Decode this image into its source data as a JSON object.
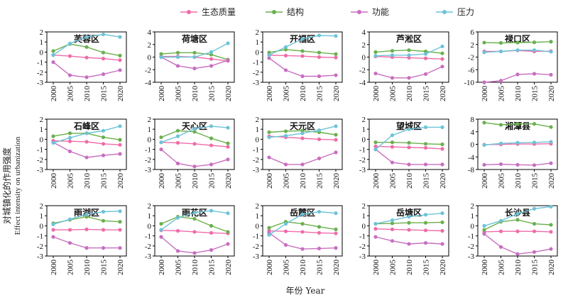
{
  "figure": {
    "xlabel": "年份 Year",
    "ylabel_cn": "对城镇化的作用强度",
    "ylabel_en": "Effect intensity on urbanization"
  },
  "legend": [
    {
      "name": "生态质量",
      "color": "#f06ba8"
    },
    {
      "name": "结构",
      "color": "#6ab04c"
    },
    {
      "name": "功能",
      "color": "#c86ec0"
    },
    {
      "name": "压力",
      "color": "#6cc3d8"
    }
  ],
  "chart_data": [
    {
      "type": "line",
      "title": "芙蓉区",
      "x": [
        "2000",
        "2005",
        "2010",
        "2015",
        "2020"
      ],
      "ylim": [
        -3,
        2
      ],
      "yticks": [
        2,
        1,
        0,
        -1,
        -2,
        -3
      ],
      "series": [
        {
          "name": "生态质量",
          "values": [
            -0.3,
            -0.4,
            -0.55,
            -0.65,
            -0.8
          ]
        },
        {
          "name": "结构",
          "values": [
            0.1,
            0.8,
            0.5,
            -0.05,
            -0.35
          ]
        },
        {
          "name": "功能",
          "values": [
            -1.0,
            -2.3,
            -2.5,
            -2.2,
            -1.8
          ]
        },
        {
          "name": "压力",
          "values": [
            -0.3,
            0.85,
            1.5,
            1.75,
            1.5
          ]
        }
      ]
    },
    {
      "type": "line",
      "title": "荷塘区",
      "x": [
        "2000",
        "2005",
        "2010",
        "2015",
        "2020"
      ],
      "ylim": [
        -4,
        4
      ],
      "yticks": [
        4,
        2,
        0,
        -2,
        -4
      ],
      "series": [
        {
          "name": "生态质量",
          "values": [
            0.1,
            0.1,
            0.0,
            -0.3,
            -0.6
          ]
        },
        {
          "name": "结构",
          "values": [
            0.5,
            0.7,
            0.7,
            0.4,
            -0.4
          ]
        },
        {
          "name": "功能",
          "values": [
            0.0,
            -1.4,
            -1.8,
            -1.4,
            -0.5
          ]
        },
        {
          "name": "压力",
          "values": [
            0.0,
            0.0,
            0.0,
            0.8,
            2.2
          ]
        }
      ]
    },
    {
      "type": "line",
      "title": "开福区",
      "x": [
        "2000",
        "2005",
        "2010",
        "2015",
        "2020"
      ],
      "ylim": [
        -3,
        2
      ],
      "yticks": [
        2,
        1,
        0,
        -1,
        -2,
        -3
      ],
      "series": [
        {
          "name": "生态质量",
          "values": [
            -0.3,
            -0.35,
            -0.4,
            -0.5,
            -0.55
          ]
        },
        {
          "name": "结构",
          "values": [
            -0.05,
            0.25,
            0.1,
            -0.05,
            -0.2
          ]
        },
        {
          "name": "功能",
          "values": [
            -0.6,
            -1.8,
            -2.4,
            -2.4,
            -2.3
          ]
        },
        {
          "name": "压力",
          "values": [
            -0.3,
            0.5,
            1.3,
            1.65,
            1.6
          ]
        }
      ]
    },
    {
      "type": "line",
      "title": "芦淞区",
      "x": [
        "2000",
        "2005",
        "2010",
        "2015",
        "2020"
      ],
      "ylim": [
        -4,
        4
      ],
      "yticks": [
        4,
        2,
        0,
        -2,
        -4
      ],
      "series": [
        {
          "name": "生态质量",
          "values": [
            0.1,
            0.0,
            -0.1,
            -0.2,
            -0.3
          ]
        },
        {
          "name": "结构",
          "values": [
            0.8,
            1.0,
            1.1,
            0.9,
            0.6
          ]
        },
        {
          "name": "功能",
          "values": [
            -2.6,
            -3.3,
            -3.3,
            -2.7,
            -1.5
          ]
        },
        {
          "name": "压力",
          "values": [
            0.2,
            0.3,
            0.3,
            0.5,
            1.7
          ]
        }
      ]
    },
    {
      "type": "line",
      "title": "禄口区",
      "x": [
        "2000",
        "2005",
        "2010",
        "2015",
        "2020"
      ],
      "ylim": [
        -10,
        6
      ],
      "yticks": [
        6,
        2,
        -2,
        -6,
        -10
      ],
      "series": [
        {
          "name": "生态质量",
          "values": [
            -0.2,
            -0.2,
            0.1,
            -0.2,
            -0.1
          ]
        },
        {
          "name": "结构",
          "values": [
            2.6,
            2.5,
            2.6,
            2.7,
            2.9
          ]
        },
        {
          "name": "功能",
          "values": [
            -10.0,
            -9.5,
            -7.5,
            -7.3,
            -7.6
          ]
        },
        {
          "name": "压力",
          "values": [
            -0.5,
            -0.2,
            0.2,
            0.2,
            -0.3
          ]
        }
      ]
    },
    {
      "type": "line",
      "title": "石峰区",
      "x": [
        "2000",
        "2005",
        "2010",
        "2015",
        "2020"
      ],
      "ylim": [
        -3,
        2
      ],
      "yticks": [
        2,
        1,
        0,
        -1,
        -2,
        -3
      ],
      "series": [
        {
          "name": "生态质量",
          "values": [
            -0.15,
            -0.2,
            -0.25,
            -0.45,
            -0.55
          ]
        },
        {
          "name": "结构",
          "values": [
            0.3,
            0.6,
            0.6,
            0.2,
            -0.05
          ]
        },
        {
          "name": "功能",
          "values": [
            -0.3,
            -1.2,
            -1.8,
            -1.6,
            -1.45
          ]
        },
        {
          "name": "压力",
          "values": [
            -0.35,
            0.15,
            0.6,
            0.85,
            1.3
          ]
        }
      ]
    },
    {
      "type": "line",
      "title": "天心区",
      "x": [
        "2000",
        "2005",
        "2010",
        "2015",
        "2020"
      ],
      "ylim": [
        -3,
        2
      ],
      "yticks": [
        2,
        1,
        0,
        -1,
        -2,
        -3
      ],
      "series": [
        {
          "name": "生态质量",
          "values": [
            -0.3,
            -0.35,
            -0.45,
            -0.6,
            -0.75
          ]
        },
        {
          "name": "结构",
          "values": [
            0.2,
            0.85,
            0.75,
            0.1,
            -0.4
          ]
        },
        {
          "name": "功能",
          "values": [
            -1.0,
            -2.4,
            -2.7,
            -2.5,
            -2.0
          ]
        },
        {
          "name": "压力",
          "values": [
            -0.3,
            0.3,
            1.05,
            1.3,
            1.15
          ]
        }
      ]
    },
    {
      "type": "line",
      "title": "天元区",
      "x": [
        "2000",
        "2005",
        "2010",
        "2015",
        "2020"
      ],
      "ylim": [
        -3,
        2
      ],
      "yticks": [
        2,
        1,
        0,
        -1,
        -2,
        -3
      ],
      "series": [
        {
          "name": "生态质量",
          "values": [
            0.3,
            0.2,
            0.1,
            0.0,
            -0.05
          ]
        },
        {
          "name": "结构",
          "values": [
            0.7,
            0.8,
            0.85,
            0.7,
            0.45
          ]
        },
        {
          "name": "功能",
          "values": [
            -1.8,
            -2.5,
            -2.5,
            -1.9,
            -1.3
          ]
        },
        {
          "name": "压力",
          "values": [
            0.2,
            0.35,
            0.6,
            0.9,
            1.3
          ]
        }
      ]
    },
    {
      "type": "line",
      "title": "望城区",
      "x": [
        "2000",
        "2005",
        "2010",
        "2015",
        "2020"
      ],
      "ylim": [
        -3,
        2
      ],
      "yticks": [
        2,
        1,
        0,
        -1,
        -2,
        -3
      ],
      "series": [
        {
          "name": "生态质量",
          "values": [
            -0.7,
            -0.75,
            -0.8,
            -0.85,
            -0.95
          ]
        },
        {
          "name": "结构",
          "values": [
            -0.3,
            -0.3,
            -0.35,
            -0.45,
            -0.5
          ]
        },
        {
          "name": "功能",
          "values": [
            -1.0,
            -2.3,
            -2.5,
            -2.5,
            -2.5
          ]
        },
        {
          "name": "压力",
          "values": [
            -1.0,
            0.4,
            1.0,
            1.2,
            1.2
          ]
        }
      ]
    },
    {
      "type": "line",
      "title": "湘潭县",
      "x": [
        "2000",
        "2005",
        "2010",
        "2015",
        "2020"
      ],
      "ylim": [
        -8,
        8
      ],
      "yticks": [
        8,
        4,
        0,
        -4,
        -8
      ],
      "series": [
        {
          "name": "生态质量",
          "values": [
            -0.1,
            0.0,
            0.1,
            0.1,
            0.2
          ]
        },
        {
          "name": "结构",
          "values": [
            6.9,
            6.2,
            6.5,
            6.5,
            5.5
          ]
        },
        {
          "name": "功能",
          "values": [
            -6.5,
            -6.3,
            -6.5,
            -6.6,
            -6.0
          ]
        },
        {
          "name": "压力",
          "values": [
            -0.2,
            0.3,
            0.5,
            0.6,
            0.8
          ]
        }
      ]
    },
    {
      "type": "line",
      "title": "雨湖区",
      "x": [
        "2000",
        "2005",
        "2010",
        "2015",
        "2020"
      ],
      "ylim": [
        -3,
        2
      ],
      "yticks": [
        2,
        1,
        0,
        -1,
        -2,
        -3
      ],
      "series": [
        {
          "name": "生态质量",
          "values": [
            -0.4,
            -0.4,
            -0.35,
            -0.4,
            -0.4
          ]
        },
        {
          "name": "结构",
          "values": [
            0.25,
            0.6,
            0.9,
            0.5,
            0.4
          ]
        },
        {
          "name": "功能",
          "values": [
            -1.1,
            -1.7,
            -2.2,
            -2.2,
            -2.2
          ]
        },
        {
          "name": "压力",
          "values": [
            0.15,
            0.65,
            1.15,
            1.4,
            1.45
          ]
        }
      ]
    },
    {
      "type": "line",
      "title": "雨花区",
      "x": [
        "2000",
        "2005",
        "2010",
        "2015",
        "2020"
      ],
      "ylim": [
        -3,
        2
      ],
      "yticks": [
        2,
        1,
        0,
        -1,
        -2,
        -3
      ],
      "series": [
        {
          "name": "生态质量",
          "values": [
            -0.45,
            -0.5,
            -0.6,
            -0.7,
            -0.75
          ]
        },
        {
          "name": "结构",
          "values": [
            0.2,
            0.9,
            0.7,
            0.0,
            -0.6
          ]
        },
        {
          "name": "功能",
          "values": [
            -1.1,
            -2.5,
            -2.7,
            -2.4,
            -1.8
          ]
        },
        {
          "name": "压力",
          "values": [
            -0.4,
            0.8,
            1.3,
            1.5,
            1.25
          ]
        }
      ]
    },
    {
      "type": "line",
      "title": "岳麓区",
      "x": [
        "2000",
        "2005",
        "2010",
        "2015",
        "2020"
      ],
      "ylim": [
        -3,
        2
      ],
      "yticks": [
        2,
        1,
        0,
        -1,
        -2,
        -3
      ],
      "series": [
        {
          "name": "生态质量",
          "values": [
            -0.5,
            -0.55,
            -0.6,
            -0.7,
            -0.75
          ]
        },
        {
          "name": "结构",
          "values": [
            -0.2,
            0.4,
            0.2,
            -0.1,
            -0.35
          ]
        },
        {
          "name": "功能",
          "values": [
            -0.7,
            -1.9,
            -2.3,
            -2.25,
            -2.2
          ]
        },
        {
          "name": "压力",
          "values": [
            -0.9,
            0.2,
            1.15,
            1.4,
            1.25
          ]
        }
      ]
    },
    {
      "type": "line",
      "title": "岳塘区",
      "x": [
        "2000",
        "2005",
        "2010",
        "2015",
        "2020"
      ],
      "ylim": [
        -3,
        2
      ],
      "yticks": [
        2,
        1,
        0,
        -1,
        -2,
        -3
      ],
      "series": [
        {
          "name": "生态质量",
          "values": [
            -0.3,
            -0.35,
            -0.4,
            -0.45,
            -0.5
          ]
        },
        {
          "name": "结构",
          "values": [
            0.2,
            0.25,
            0.3,
            0.3,
            0.35
          ]
        },
        {
          "name": "功能",
          "values": [
            -1.1,
            -1.5,
            -1.8,
            -1.7,
            -1.8
          ]
        },
        {
          "name": "压力",
          "values": [
            0.2,
            0.55,
            0.9,
            1.1,
            1.25
          ]
        }
      ]
    },
    {
      "type": "line",
      "title": "长沙县",
      "x": [
        "2000",
        "2005",
        "2010",
        "2015",
        "2020"
      ],
      "ylim": [
        -3,
        2
      ],
      "yticks": [
        2,
        1,
        0,
        -1,
        -2,
        -3
      ],
      "series": [
        {
          "name": "生态质量",
          "values": [
            -0.6,
            -0.55,
            -0.55,
            -0.55,
            -0.6
          ]
        },
        {
          "name": "结构",
          "values": [
            -0.4,
            0.4,
            0.6,
            0.2,
            0.1
          ]
        },
        {
          "name": "功能",
          "values": [
            -0.8,
            -2.1,
            -2.8,
            -2.6,
            -2.3
          ]
        },
        {
          "name": "压力",
          "values": [
            0.0,
            0.5,
            1.2,
            1.7,
            1.9
          ]
        }
      ]
    }
  ]
}
